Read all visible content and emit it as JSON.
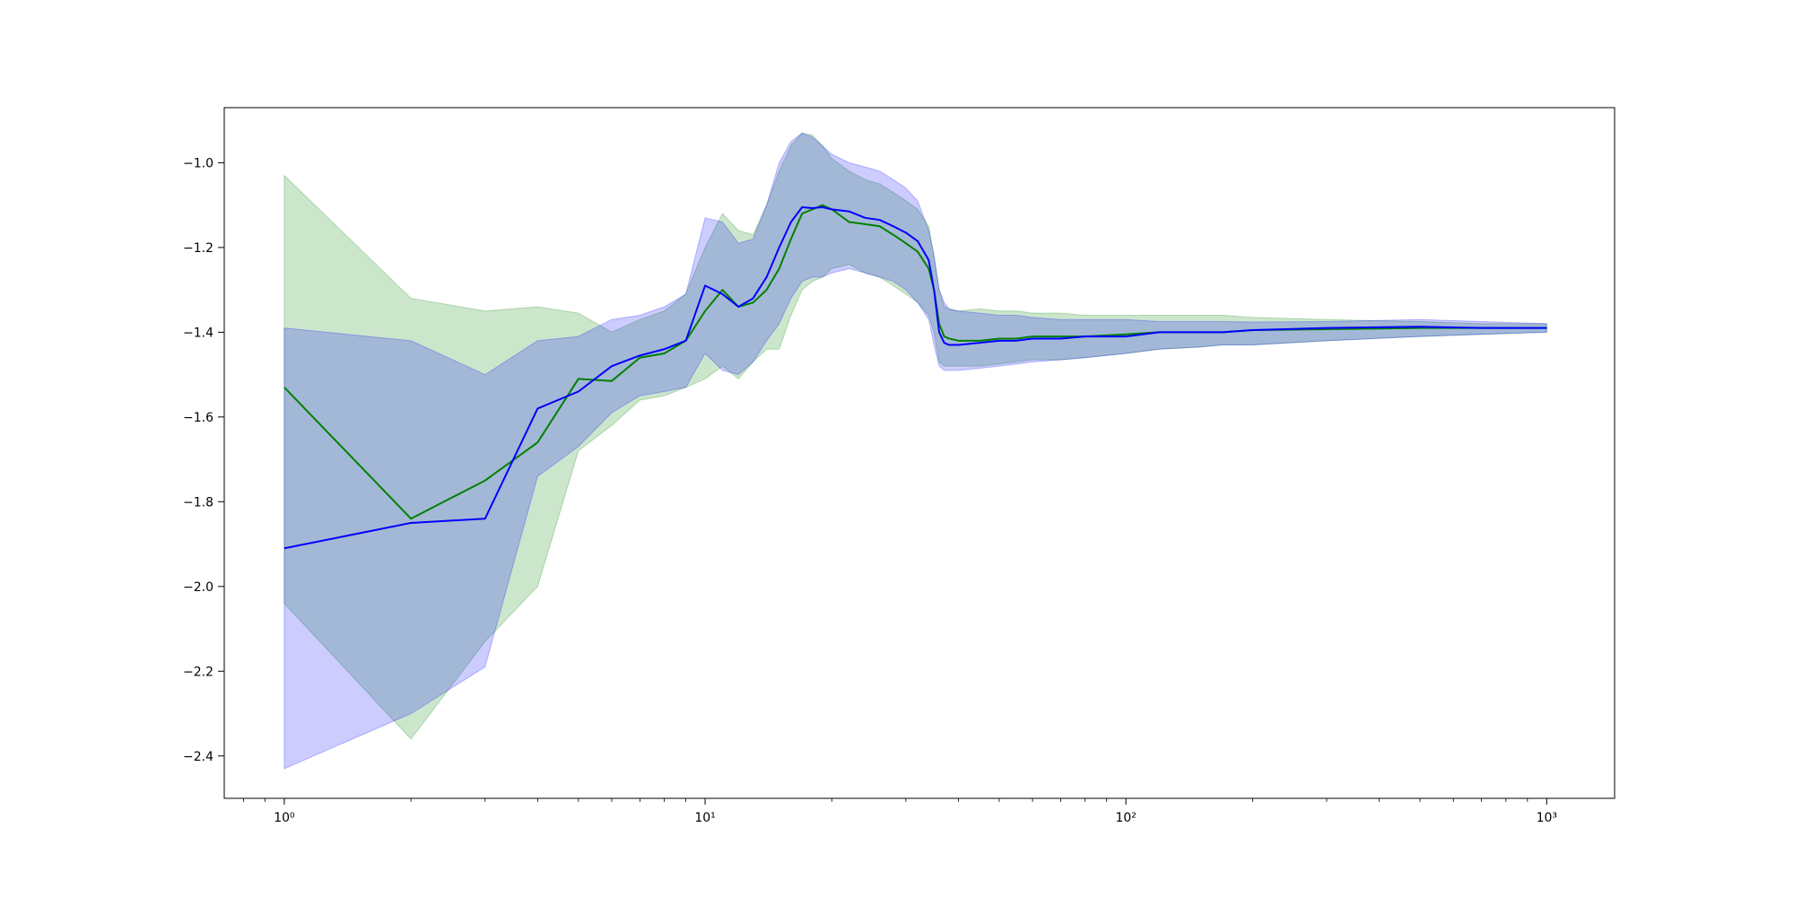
{
  "chart_data": {
    "type": "line",
    "title": "",
    "xlabel": "",
    "ylabel": "",
    "x_scale": "log",
    "xlim": [
      0.72,
      1450
    ],
    "ylim": [
      -2.5,
      -0.87
    ],
    "grid": false,
    "legend": "none",
    "x_tick_values": [
      1,
      10,
      100,
      1000
    ],
    "x_tick_labels": [
      "10⁰",
      "10¹",
      "10²",
      "10³"
    ],
    "y_tick_values": [
      -1.0,
      -1.2,
      -1.4,
      -1.6,
      -1.8,
      -2.0,
      -2.2,
      -2.4
    ],
    "y_tick_labels": [
      "−1.0",
      "−1.2",
      "−1.4",
      "−1.6",
      "−1.8",
      "−2.0",
      "−2.2",
      "−2.4"
    ],
    "series": [
      {
        "color": "#008000",
        "band_color": "#008000",
        "band_opacity": 0.2,
        "x": [
          1,
          2,
          3,
          4,
          5,
          6,
          7,
          8,
          9,
          10,
          11,
          12,
          13,
          14,
          15,
          16,
          17,
          18,
          19,
          20,
          22,
          24,
          26,
          28,
          30,
          32,
          34,
          35,
          36,
          37,
          38,
          40,
          45,
          50,
          55,
          60,
          70,
          80,
          100,
          120,
          150,
          170,
          200,
          300,
          500,
          700,
          1000
        ],
        "values": [
          -1.53,
          -1.84,
          -1.75,
          -1.66,
          -1.51,
          -1.515,
          -1.46,
          -1.45,
          -1.42,
          -1.35,
          -1.3,
          -1.34,
          -1.33,
          -1.3,
          -1.25,
          -1.18,
          -1.12,
          -1.11,
          -1.1,
          -1.11,
          -1.14,
          -1.145,
          -1.15,
          -1.17,
          -1.19,
          -1.21,
          -1.25,
          -1.3,
          -1.38,
          -1.41,
          -1.415,
          -1.42,
          -1.42,
          -1.415,
          -1.415,
          -1.41,
          -1.41,
          -1.41,
          -1.405,
          -1.4,
          -1.4,
          -1.4,
          -1.395,
          -1.393,
          -1.39,
          -1.39,
          -1.39
        ],
        "upper": [
          -1.03,
          -1.32,
          -1.35,
          -1.34,
          -1.355,
          -1.4,
          -1.37,
          -1.35,
          -1.31,
          -1.2,
          -1.12,
          -1.16,
          -1.17,
          -1.1,
          -1.02,
          -0.96,
          -0.93,
          -0.935,
          -0.96,
          -0.99,
          -1.02,
          -1.04,
          -1.05,
          -1.07,
          -1.09,
          -1.11,
          -1.15,
          -1.22,
          -1.3,
          -1.34,
          -1.345,
          -1.35,
          -1.345,
          -1.35,
          -1.35,
          -1.355,
          -1.355,
          -1.36,
          -1.36,
          -1.36,
          -1.36,
          -1.36,
          -1.365,
          -1.37,
          -1.375,
          -1.38,
          -1.38
        ],
        "lower": [
          -2.04,
          -2.36,
          -2.13,
          -2.0,
          -1.68,
          -1.62,
          -1.56,
          -1.55,
          -1.53,
          -1.51,
          -1.48,
          -1.51,
          -1.47,
          -1.44,
          -1.44,
          -1.36,
          -1.3,
          -1.28,
          -1.27,
          -1.25,
          -1.24,
          -1.26,
          -1.27,
          -1.29,
          -1.31,
          -1.33,
          -1.36,
          -1.4,
          -1.47,
          -1.48,
          -1.48,
          -1.48,
          -1.48,
          -1.475,
          -1.47,
          -1.465,
          -1.465,
          -1.46,
          -1.45,
          -1.44,
          -1.435,
          -1.43,
          -1.43,
          -1.42,
          -1.41,
          -1.405,
          -1.4
        ]
      },
      {
        "color": "#0000ff",
        "band_color": "#0000ff",
        "band_opacity": 0.2,
        "x": [
          1,
          2,
          3,
          4,
          5,
          6,
          7,
          8,
          9,
          10,
          11,
          12,
          13,
          14,
          15,
          16,
          17,
          18,
          19,
          20,
          22,
          24,
          26,
          28,
          30,
          32,
          34,
          35,
          36,
          37,
          38,
          40,
          45,
          50,
          55,
          60,
          70,
          80,
          100,
          120,
          150,
          170,
          200,
          300,
          500,
          700,
          1000
        ],
        "values": [
          -1.91,
          -1.85,
          -1.84,
          -1.58,
          -1.54,
          -1.48,
          -1.455,
          -1.44,
          -1.42,
          -1.29,
          -1.31,
          -1.34,
          -1.32,
          -1.27,
          -1.2,
          -1.14,
          -1.105,
          -1.107,
          -1.105,
          -1.11,
          -1.115,
          -1.13,
          -1.135,
          -1.15,
          -1.165,
          -1.185,
          -1.23,
          -1.3,
          -1.4,
          -1.425,
          -1.43,
          -1.43,
          -1.425,
          -1.42,
          -1.42,
          -1.415,
          -1.415,
          -1.41,
          -1.41,
          -1.4,
          -1.4,
          -1.4,
          -1.395,
          -1.39,
          -1.387,
          -1.39,
          -1.39
        ],
        "upper": [
          -1.39,
          -1.42,
          -1.5,
          -1.42,
          -1.41,
          -1.37,
          -1.36,
          -1.34,
          -1.31,
          -1.13,
          -1.14,
          -1.19,
          -1.18,
          -1.1,
          -1.0,
          -0.95,
          -0.93,
          -0.94,
          -0.96,
          -0.98,
          -1.0,
          -1.01,
          -1.02,
          -1.04,
          -1.06,
          -1.09,
          -1.16,
          -1.22,
          -1.3,
          -1.33,
          -1.345,
          -1.35,
          -1.355,
          -1.36,
          -1.36,
          -1.365,
          -1.37,
          -1.37,
          -1.37,
          -1.375,
          -1.375,
          -1.375,
          -1.376,
          -1.375,
          -1.37,
          -1.375,
          -1.38
        ],
        "lower": [
          -2.43,
          -2.3,
          -2.19,
          -1.74,
          -1.67,
          -1.59,
          -1.55,
          -1.54,
          -1.53,
          -1.45,
          -1.49,
          -1.5,
          -1.47,
          -1.42,
          -1.38,
          -1.32,
          -1.28,
          -1.27,
          -1.27,
          -1.26,
          -1.25,
          -1.26,
          -1.27,
          -1.28,
          -1.3,
          -1.33,
          -1.37,
          -1.43,
          -1.48,
          -1.49,
          -1.49,
          -1.49,
          -1.485,
          -1.48,
          -1.475,
          -1.47,
          -1.465,
          -1.46,
          -1.45,
          -1.44,
          -1.435,
          -1.43,
          -1.43,
          -1.42,
          -1.41,
          -1.405,
          -1.4
        ]
      }
    ]
  }
}
